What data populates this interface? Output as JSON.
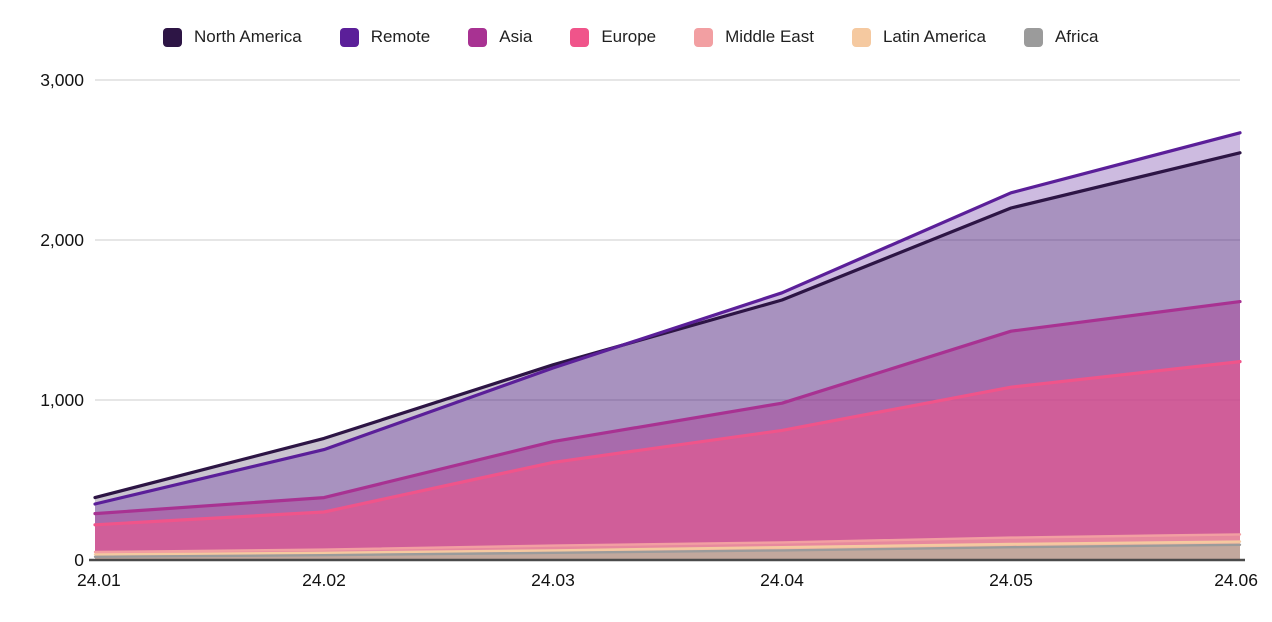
{
  "chart_data": {
    "type": "area",
    "title": "",
    "xlabel": "",
    "ylabel": "",
    "x": [
      "24.01",
      "24.02",
      "24.03",
      "24.04",
      "24.05",
      "24.06"
    ],
    "ylim": [
      0,
      3000
    ],
    "yticks": [
      0,
      1000,
      2000,
      3000
    ],
    "ytick_labels": [
      "0",
      "1,000",
      "2,000",
      "3,000"
    ],
    "grid": true,
    "legend_position": "top",
    "mode": "overlapping-areas",
    "series": [
      {
        "name": "North America",
        "color": "#2d1545",
        "fill_opacity": 0.25,
        "values": [
          390,
          760,
          1220,
          1625,
          2200,
          2545
        ]
      },
      {
        "name": "Remote",
        "color": "#5b1f99",
        "fill_opacity": 0.3,
        "values": [
          350,
          690,
          1200,
          1670,
          2295,
          2670
        ]
      },
      {
        "name": "Asia",
        "color": "#a83292",
        "fill_opacity": 0.4,
        "values": [
          290,
          390,
          740,
          980,
          1430,
          1615
        ]
      },
      {
        "name": "Europe",
        "color": "#f0548a",
        "fill_opacity": 0.55,
        "values": [
          220,
          300,
          610,
          810,
          1080,
          1240
        ]
      },
      {
        "name": "Middle East",
        "color": "#f29fa2",
        "fill_opacity": 0.65,
        "values": [
          50,
          65,
          90,
          110,
          140,
          160
        ]
      },
      {
        "name": "Latin America",
        "color": "#f5c9a0",
        "fill_opacity": 0.75,
        "values": [
          35,
          45,
          60,
          80,
          100,
          115
        ]
      },
      {
        "name": "Africa",
        "color": "#9b9b9b",
        "fill_opacity": 0.55,
        "values": [
          20,
          30,
          45,
          60,
          80,
          95
        ]
      }
    ]
  },
  "axis": {
    "grid_color": "#cccccc",
    "baseline_color": "#4a4a4a",
    "tick_text_color": "#121212"
  }
}
